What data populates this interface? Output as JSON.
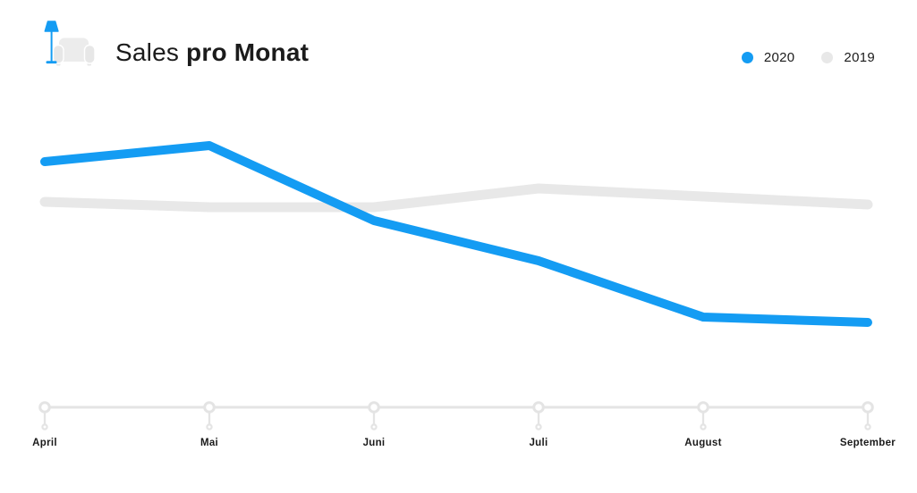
{
  "header": {
    "title_regular": "Sales",
    "title_bold": "pro Monat",
    "logo_icon": "floor-lamp-and-couch"
  },
  "chart_data": {
    "type": "line",
    "title": "Sales pro Monat",
    "categories": [
      "April",
      "Mai",
      "Juni",
      "Juli",
      "August",
      "September"
    ],
    "series": [
      {
        "name": "2020",
        "color": "#149CF3",
        "values": [
          93,
          99,
          71,
          56,
          35,
          33
        ]
      },
      {
        "name": "2019",
        "color": "#E8E8E8",
        "values": [
          78,
          76,
          76,
          83,
          80,
          77
        ]
      }
    ],
    "value_scale": "relative-estimate-0-100 (no y-axis shown)",
    "ylim": [
      0,
      110
    ],
    "grid": false,
    "y_axis_visible": false,
    "x_axis_style": "timeline-with-node-markers",
    "legend_position": "top-right"
  },
  "colors": {
    "background": "#FFFFFF",
    "accent_blue": "#149CF3",
    "series_gray": "#E8E8E8",
    "axis_gray": "#E4E4E4",
    "text_dark": "#1A1A1A",
    "couch_light": "#ECECEC",
    "couch_mid": "#E7E7E7"
  }
}
